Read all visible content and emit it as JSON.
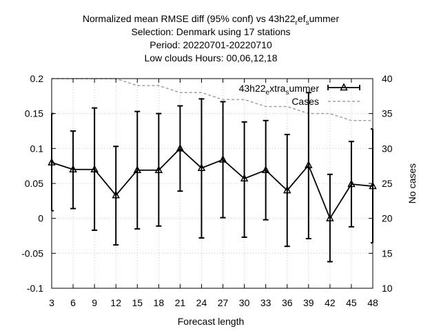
{
  "chart_data": {
    "type": "line",
    "title_lines": [
      "Normalized mean RMSE diff (95% conf) vs 43h22_ref_summer",
      "Selection: Denmark using    17 stations",
      "Period: 20220701-20220710",
      "Low clouds   Hours: 00,06,12,18"
    ],
    "xlabel": "Forecast length",
    "ylabel_right": "No cases",
    "x": [
      3,
      6,
      9,
      12,
      15,
      18,
      21,
      24,
      27,
      30,
      33,
      36,
      39,
      42,
      45,
      48
    ],
    "xlim": [
      3,
      48
    ],
    "ylim": [
      -0.1,
      0.2
    ],
    "y2lim": [
      10,
      40
    ],
    "y_ticks": [
      -0.1,
      -0.05,
      0,
      0.05,
      0.1,
      0.15,
      0.2
    ],
    "y_tick_labels": [
      "-0.1",
      "-0.05",
      "0",
      "0.05",
      "0.1",
      "0.15",
      "0.2"
    ],
    "y2_ticks": [
      10,
      15,
      20,
      25,
      30,
      35,
      40
    ],
    "grid": true,
    "legend_position": "top-right",
    "series": [
      {
        "name": "43h22_extra_summer",
        "axis": "left",
        "color": "#000000",
        "marker": "triangle",
        "values": [
          0.08,
          0.07,
          0.07,
          0.033,
          0.069,
          0.069,
          0.1,
          0.072,
          0.084,
          0.057,
          0.069,
          0.04,
          0.076,
          0.0,
          0.049,
          0.046
        ],
        "err_low": [
          0.011,
          0.014,
          -0.017,
          -0.038,
          -0.015,
          -0.011,
          0.039,
          -0.028,
          0.001,
          -0.027,
          -0.002,
          -0.04,
          -0.029,
          -0.062,
          -0.012,
          -0.035
        ],
        "err_high": [
          0.15,
          0.125,
          0.158,
          0.103,
          0.153,
          0.15,
          0.161,
          0.171,
          0.167,
          0.138,
          0.14,
          0.12,
          0.18,
          0.063,
          0.11,
          0.128
        ]
      },
      {
        "name": "Cases",
        "axis": "right",
        "color": "#a0a0a0",
        "dashed": true,
        "values": [
          40,
          40,
          40,
          40,
          39,
          39,
          38,
          38,
          37,
          37,
          36,
          36,
          35,
          35,
          34,
          34
        ]
      }
    ]
  }
}
